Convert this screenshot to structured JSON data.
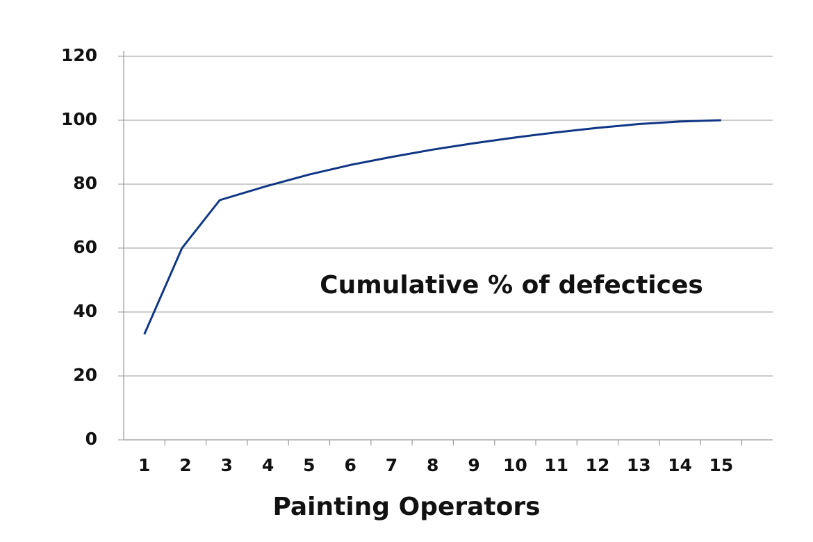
{
  "chart_data": {
    "type": "line",
    "annotation": "Cumulative % of defectices",
    "x_label": "Painting Operators",
    "categories": [
      "1",
      "2",
      "3",
      "4",
      "5",
      "6",
      "7",
      "8",
      "9",
      "10",
      "11",
      "12",
      "13",
      "14",
      "15"
    ],
    "values": [
      33,
      60,
      75,
      79.5,
      83,
      86,
      88.5,
      90.8,
      92.8,
      94.6,
      96.2,
      97.6,
      98.8,
      99.6,
      100
    ],
    "color": "#0f3685",
    "ylim": [
      0,
      120
    ],
    "yticks": [
      0,
      20,
      40,
      60,
      80,
      100,
      120
    ],
    "grid": true
  }
}
